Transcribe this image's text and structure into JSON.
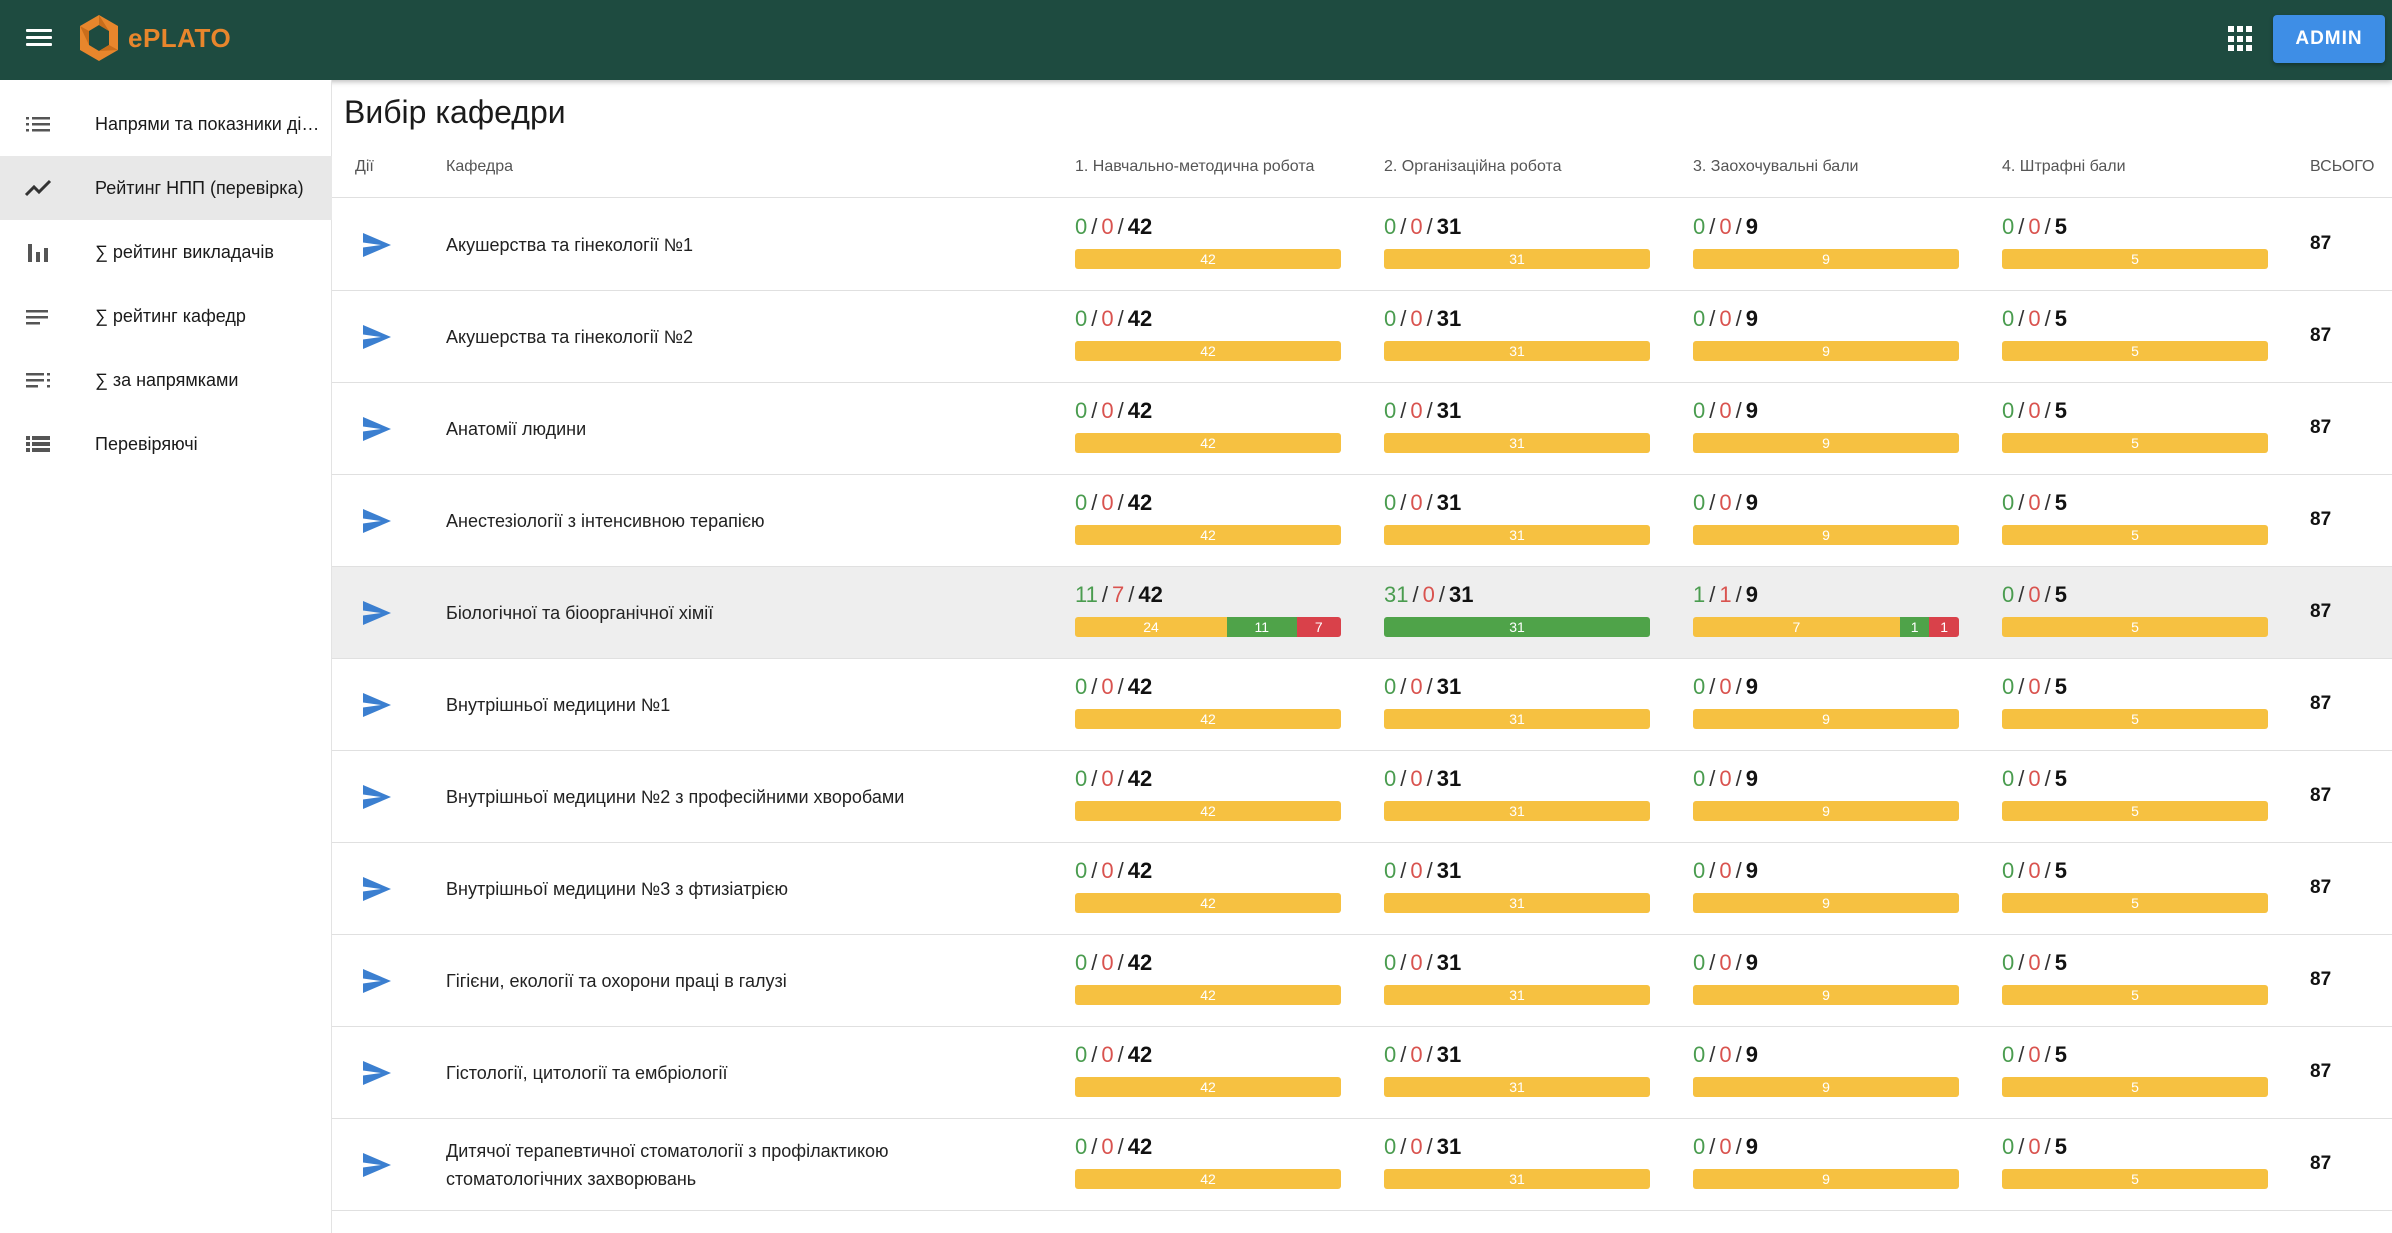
{
  "app": {
    "brand": "ePLATO",
    "admin_label": "ADMIN"
  },
  "sidebar": {
    "items": [
      {
        "label": "Напрями та показники діяльності",
        "icon": "list-icon",
        "active": false
      },
      {
        "label": "Рейтинг НПП (перевірка)",
        "icon": "trending-up-icon",
        "active": true
      },
      {
        "label": "∑ рейтинг викладачів",
        "icon": "bar-chart-icon",
        "active": false
      },
      {
        "label": "∑ рейтинг кафедр",
        "icon": "notes-icon",
        "active": false
      },
      {
        "label": "∑ за напрямками",
        "icon": "playlist-icon",
        "active": false
      },
      {
        "label": "Перевіряючі",
        "icon": "view-list-icon",
        "active": false
      }
    ]
  },
  "page": {
    "title": "Вибір кафедри"
  },
  "table": {
    "headers": {
      "actions": "Дії",
      "department": "Кафедра",
      "c1": "1. Навчально-методична робота",
      "c2": "2. Організаційна робота",
      "c3": "3. Заохочувальні бали",
      "c4": "4. Штрафні бали",
      "total": "ВСЬОГО"
    },
    "separator": "/",
    "rows": [
      {
        "department": "Акушерства та гінекології №1",
        "total": "87",
        "highlight": false,
        "cells": [
          {
            "approved": "0",
            "rejected": "0",
            "max": "42",
            "bar": {
              "pending": "42",
              "approved": "",
              "rejected": ""
            }
          },
          {
            "approved": "0",
            "rejected": "0",
            "max": "31",
            "bar": {
              "pending": "31",
              "approved": "",
              "rejected": ""
            }
          },
          {
            "approved": "0",
            "rejected": "0",
            "max": "9",
            "bar": {
              "pending": "9",
              "approved": "",
              "rejected": ""
            }
          },
          {
            "approved": "0",
            "rejected": "0",
            "max": "5",
            "bar": {
              "pending": "5",
              "approved": "",
              "rejected": ""
            }
          }
        ]
      },
      {
        "department": "Акушерства та гінекології №2",
        "total": "87",
        "highlight": false,
        "cells": [
          {
            "approved": "0",
            "rejected": "0",
            "max": "42",
            "bar": {
              "pending": "42",
              "approved": "",
              "rejected": ""
            }
          },
          {
            "approved": "0",
            "rejected": "0",
            "max": "31",
            "bar": {
              "pending": "31",
              "approved": "",
              "rejected": ""
            }
          },
          {
            "approved": "0",
            "rejected": "0",
            "max": "9",
            "bar": {
              "pending": "9",
              "approved": "",
              "rejected": ""
            }
          },
          {
            "approved": "0",
            "rejected": "0",
            "max": "5",
            "bar": {
              "pending": "5",
              "approved": "",
              "rejected": ""
            }
          }
        ]
      },
      {
        "department": "Анатомії людини",
        "total": "87",
        "highlight": false,
        "cells": [
          {
            "approved": "0",
            "rejected": "0",
            "max": "42",
            "bar": {
              "pending": "42",
              "approved": "",
              "rejected": ""
            }
          },
          {
            "approved": "0",
            "rejected": "0",
            "max": "31",
            "bar": {
              "pending": "31",
              "approved": "",
              "rejected": ""
            }
          },
          {
            "approved": "0",
            "rejected": "0",
            "max": "9",
            "bar": {
              "pending": "9",
              "approved": "",
              "rejected": ""
            }
          },
          {
            "approved": "0",
            "rejected": "0",
            "max": "5",
            "bar": {
              "pending": "5",
              "approved": "",
              "rejected": ""
            }
          }
        ]
      },
      {
        "department": "Анестезіології з інтенсивною терапією",
        "total": "87",
        "highlight": false,
        "cells": [
          {
            "approved": "0",
            "rejected": "0",
            "max": "42",
            "bar": {
              "pending": "42",
              "approved": "",
              "rejected": ""
            }
          },
          {
            "approved": "0",
            "rejected": "0",
            "max": "31",
            "bar": {
              "pending": "31",
              "approved": "",
              "rejected": ""
            }
          },
          {
            "approved": "0",
            "rejected": "0",
            "max": "9",
            "bar": {
              "pending": "9",
              "approved": "",
              "rejected": ""
            }
          },
          {
            "approved": "0",
            "rejected": "0",
            "max": "5",
            "bar": {
              "pending": "5",
              "approved": "",
              "rejected": ""
            }
          }
        ]
      },
      {
        "department": "Біологічної та біоорганічної хімії",
        "total": "87",
        "highlight": true,
        "cells": [
          {
            "approved": "11",
            "rejected": "7",
            "max": "42",
            "bar": {
              "pending": "24",
              "approved": "11",
              "rejected": "7"
            }
          },
          {
            "approved": "31",
            "rejected": "0",
            "max": "31",
            "bar": {
              "pending": "",
              "approved": "31",
              "rejected": ""
            }
          },
          {
            "approved": "1",
            "rejected": "1",
            "max": "9",
            "bar": {
              "pending": "7",
              "approved": "1",
              "rejected": "1"
            }
          },
          {
            "approved": "0",
            "rejected": "0",
            "max": "5",
            "bar": {
              "pending": "5",
              "approved": "",
              "rejected": ""
            }
          }
        ]
      },
      {
        "department": "Внутрішньої медицини №1",
        "total": "87",
        "highlight": false,
        "cells": [
          {
            "approved": "0",
            "rejected": "0",
            "max": "42",
            "bar": {
              "pending": "42",
              "approved": "",
              "rejected": ""
            }
          },
          {
            "approved": "0",
            "rejected": "0",
            "max": "31",
            "bar": {
              "pending": "31",
              "approved": "",
              "rejected": ""
            }
          },
          {
            "approved": "0",
            "rejected": "0",
            "max": "9",
            "bar": {
              "pending": "9",
              "approved": "",
              "rejected": ""
            }
          },
          {
            "approved": "0",
            "rejected": "0",
            "max": "5",
            "bar": {
              "pending": "5",
              "approved": "",
              "rejected": ""
            }
          }
        ]
      },
      {
        "department": "Внутрішньої медицини №2 з професійними хворобами",
        "total": "87",
        "highlight": false,
        "cells": [
          {
            "approved": "0",
            "rejected": "0",
            "max": "42",
            "bar": {
              "pending": "42",
              "approved": "",
              "rejected": ""
            }
          },
          {
            "approved": "0",
            "rejected": "0",
            "max": "31",
            "bar": {
              "pending": "31",
              "approved": "",
              "rejected": ""
            }
          },
          {
            "approved": "0",
            "rejected": "0",
            "max": "9",
            "bar": {
              "pending": "9",
              "approved": "",
              "rejected": ""
            }
          },
          {
            "approved": "0",
            "rejected": "0",
            "max": "5",
            "bar": {
              "pending": "5",
              "approved": "",
              "rejected": ""
            }
          }
        ]
      },
      {
        "department": "Внутрішньої медицини №3 з фтизіатрією",
        "total": "87",
        "highlight": false,
        "cells": [
          {
            "approved": "0",
            "rejected": "0",
            "max": "42",
            "bar": {
              "pending": "42",
              "approved": "",
              "rejected": ""
            }
          },
          {
            "approved": "0",
            "rejected": "0",
            "max": "31",
            "bar": {
              "pending": "31",
              "approved": "",
              "rejected": ""
            }
          },
          {
            "approved": "0",
            "rejected": "0",
            "max": "9",
            "bar": {
              "pending": "9",
              "approved": "",
              "rejected": ""
            }
          },
          {
            "approved": "0",
            "rejected": "0",
            "max": "5",
            "bar": {
              "pending": "5",
              "approved": "",
              "rejected": ""
            }
          }
        ]
      },
      {
        "department": "Гігієни, екології та охорони праці в галузі",
        "total": "87",
        "highlight": false,
        "cells": [
          {
            "approved": "0",
            "rejected": "0",
            "max": "42",
            "bar": {
              "pending": "42",
              "approved": "",
              "rejected": ""
            }
          },
          {
            "approved": "0",
            "rejected": "0",
            "max": "31",
            "bar": {
              "pending": "31",
              "approved": "",
              "rejected": ""
            }
          },
          {
            "approved": "0",
            "rejected": "0",
            "max": "9",
            "bar": {
              "pending": "9",
              "approved": "",
              "rejected": ""
            }
          },
          {
            "approved": "0",
            "rejected": "0",
            "max": "5",
            "bar": {
              "pending": "5",
              "approved": "",
              "rejected": ""
            }
          }
        ]
      },
      {
        "department": "Гістології, цитології та ембріології",
        "total": "87",
        "highlight": false,
        "cells": [
          {
            "approved": "0",
            "rejected": "0",
            "max": "42",
            "bar": {
              "pending": "42",
              "approved": "",
              "rejected": ""
            }
          },
          {
            "approved": "0",
            "rejected": "0",
            "max": "31",
            "bar": {
              "pending": "31",
              "approved": "",
              "rejected": ""
            }
          },
          {
            "approved": "0",
            "rejected": "0",
            "max": "9",
            "bar": {
              "pending": "9",
              "approved": "",
              "rejected": ""
            }
          },
          {
            "approved": "0",
            "rejected": "0",
            "max": "5",
            "bar": {
              "pending": "5",
              "approved": "",
              "rejected": ""
            }
          }
        ]
      },
      {
        "department": "Дитячої терапевтичної стоматології з профілактикою стоматологічних захворювань",
        "total": "87",
        "highlight": false,
        "cells": [
          {
            "approved": "0",
            "rejected": "0",
            "max": "42",
            "bar": {
              "pending": "42",
              "approved": "",
              "rejected": ""
            }
          },
          {
            "approved": "0",
            "rejected": "0",
            "max": "31",
            "bar": {
              "pending": "31",
              "approved": "",
              "rejected": ""
            }
          },
          {
            "approved": "0",
            "rejected": "0",
            "max": "9",
            "bar": {
              "pending": "9",
              "approved": "",
              "rejected": ""
            }
          },
          {
            "approved": "0",
            "rejected": "0",
            "max": "5",
            "bar": {
              "pending": "5",
              "approved": "",
              "rejected": ""
            }
          }
        ]
      }
    ]
  },
  "colors": {
    "appbar": "#1e4b40",
    "brand": "#e8862c",
    "admin": "#3e8ee6",
    "approved": "#4fa349",
    "rejected": "#d9414a",
    "pending": "#f6c141",
    "send_icon": "#3b7fd0"
  }
}
